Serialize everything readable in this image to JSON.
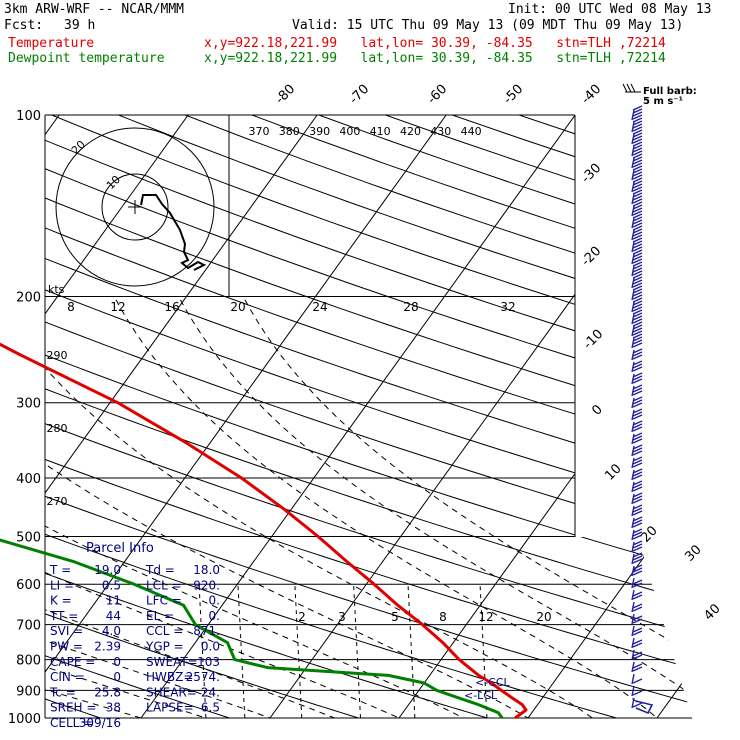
{
  "header": {
    "model": "3km ARW-WRF -- NCAR/MMM",
    "init": "Init: 00 UTC Wed 08 May 13",
    "fcst_label": "Fcst:",
    "fcst_value": "39 h",
    "valid": "Valid: 15 UTC Thu 09 May 13 (09 MDT Thu 09 May 13)",
    "temp_label": "Temperature",
    "temp_info": "x,y=922.18,221.99   lat,lon= 30.39, -84.35   stn=TLH ,72214",
    "dew_label": "Dewpoint temperature",
    "dew_info": "x,y=922.18,221.99   lat,lon= 30.39, -84.35   stn=TLH ,72214"
  },
  "colors": {
    "temperature": "#e00000",
    "dewpoint": "#008000",
    "parcel_text": "#000080",
    "wind": "#2020a0"
  },
  "chart_data": {
    "type": "line",
    "title": "",
    "pressure_levels": [
      "100",
      "200",
      "300",
      "400",
      "500",
      "600",
      "700",
      "800",
      "900",
      "1000"
    ],
    "isotherm_labels": [
      "-80",
      "-70",
      "-60",
      "-50",
      "-40",
      "-30",
      "-20",
      "-10",
      "0",
      "10",
      "20",
      "30",
      "40"
    ],
    "theta_labels": [
      "370",
      "380",
      "390",
      "400",
      "410",
      "420",
      "430",
      "440"
    ],
    "theta_low_labels": [
      "290",
      "280",
      "270"
    ],
    "mixing_ratio_labels": [
      "2",
      "3",
      "5",
      "8",
      "12",
      "20"
    ],
    "hodograph_kts_label": "kts",
    "hodograph_speed_labels": [
      "8",
      "12",
      "16",
      "20",
      "24",
      "28",
      "32"
    ],
    "hodograph_ring_labels": [
      "20",
      "10"
    ],
    "wind_key": "Full barb:\n5 m s⁻¹",
    "temperature": {
      "p": [
        1000,
        970,
        950,
        925,
        900,
        875,
        850,
        800,
        750,
        700,
        650,
        600,
        550,
        500,
        450,
        400,
        350,
        300,
        250,
        200,
        170,
        150,
        125,
        100
      ],
      "t": [
        19.0,
        19.4,
        18.8,
        17.6,
        16.4,
        15.2,
        13.8,
        11.4,
        9.2,
        6.6,
        3.6,
        0.6,
        -2.8,
        -6.4,
        -10.6,
        -15.6,
        -21.8,
        -29.4,
        -39.6,
        -51.6,
        -57.6,
        -60.6,
        -62.6,
        -66.0
      ]
    },
    "dewpoint": {
      "p": [
        1000,
        980,
        950,
        925,
        900,
        875,
        850,
        825,
        800,
        750,
        700,
        650,
        600,
        550,
        500,
        450,
        400,
        350,
        300,
        250,
        200,
        170,
        150,
        125,
        110,
        100
      ],
      "td": [
        18.0,
        17.4,
        15.4,
        13.4,
        11.4,
        10.0,
        6.8,
        -3.0,
        -6.0,
        -7.5,
        -11.0,
        -13.0,
        -18.0,
        -24.0,
        -32.0,
        -38.0,
        -44.0,
        -50.0,
        -54.0,
        -58.0,
        -62.0,
        -66.0,
        -70.0,
        -72.0,
        -72.0,
        -72.0
      ]
    },
    "lcl_label": "<-LCL",
    "ccl_label": "<-CCL",
    "parcel_info": {
      "title": "Parcel Info",
      "rows": [
        [
          "T  =",
          "19.0",
          "Td =",
          "18.0"
        ],
        [
          "LI =",
          "0.5",
          "LCL =",
          "920."
        ],
        [
          "K  =",
          "11",
          "LFC =",
          "0."
        ],
        [
          "TT =",
          "44",
          "EL  =",
          "0."
        ],
        [
          "SVI =",
          "4.0",
          "CCL =",
          "871."
        ],
        [
          "PW =",
          "2.39",
          "YGP =",
          "0.0"
        ],
        [
          "CAPE =",
          "0",
          "SWEAT=",
          "103"
        ],
        [
          "CIN  =",
          "0",
          "HWBZ=",
          "2574."
        ],
        [
          "Tc  =",
          "25.8",
          "SHEAR=",
          "24."
        ],
        [
          "SREH =",
          "38",
          "LAPSE=",
          "6.5"
        ],
        [
          "CELL =",
          "309/16",
          "",
          ""
        ]
      ]
    }
  }
}
